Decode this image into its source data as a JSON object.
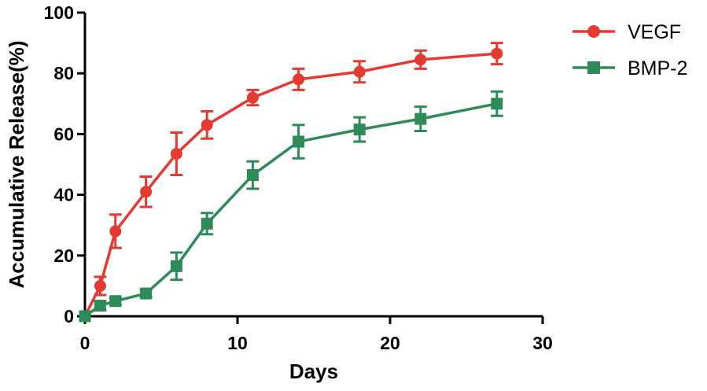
{
  "chart_data": {
    "type": "line",
    "title": "",
    "xlabel": "Days",
    "ylabel": "Accumulative Release(%)",
    "xlim": [
      0,
      30
    ],
    "ylim": [
      0,
      100
    ],
    "xticks": [
      0,
      10,
      20,
      30
    ],
    "yticks": [
      0,
      20,
      40,
      60,
      80,
      100
    ],
    "grid": false,
    "legend_position": "top-right",
    "series": [
      {
        "name": "VEGF",
        "color": "#e53a31",
        "marker": "circle",
        "x": [
          0,
          1,
          2,
          4,
          6,
          8,
          11,
          14,
          18,
          22,
          27
        ],
        "y": [
          0,
          10,
          28,
          41,
          53.5,
          63,
          72,
          78,
          80.5,
          84.5,
          86.5
        ],
        "error": [
          0,
          3,
          5.5,
          5,
          7,
          4.5,
          2.5,
          3.5,
          3.5,
          3,
          3.5
        ]
      },
      {
        "name": "BMP-2",
        "color": "#2e8b57",
        "marker": "square",
        "x": [
          0,
          1,
          2,
          4,
          6,
          8,
          11,
          14,
          18,
          22,
          27
        ],
        "y": [
          0,
          3.5,
          5,
          7.5,
          16.5,
          30.5,
          46.5,
          57.5,
          61.5,
          65,
          70
        ],
        "error": [
          0,
          1.5,
          1.2,
          1.2,
          4.5,
          3.5,
          4.5,
          5.5,
          4,
          4,
          4
        ]
      }
    ]
  }
}
